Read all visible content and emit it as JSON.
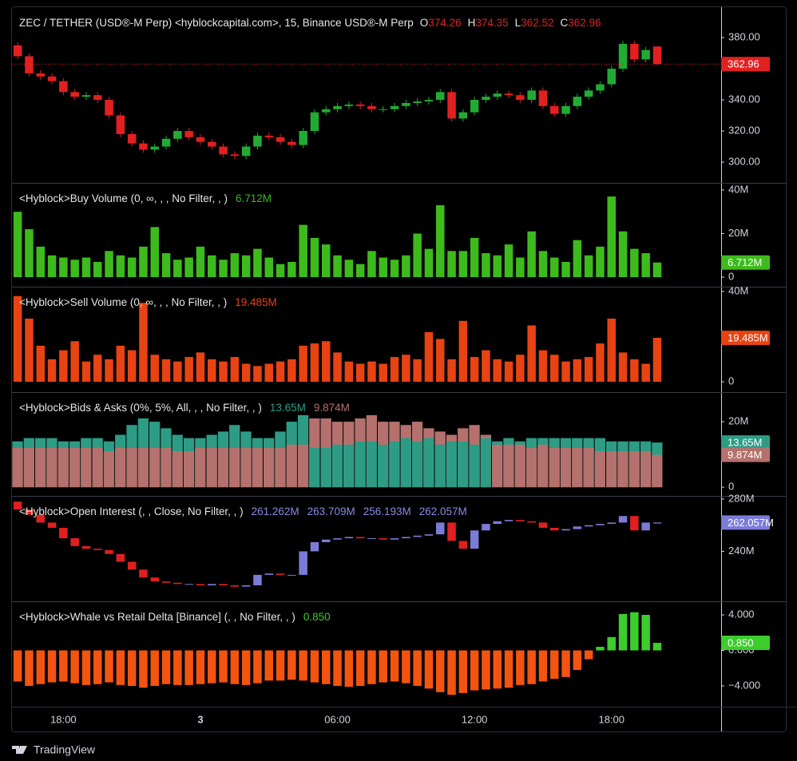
{
  "chart_data": [
    {
      "type": "candlestick",
      "title": "ZEC / TETHER (USD®-M Perp) <hyblockcapital.com>, 15, Binance USD®-M Perp",
      "legend_keys": [
        "O",
        "H",
        "L",
        "C"
      ],
      "open": [
        375,
        368,
        357,
        355,
        352,
        345,
        342,
        343,
        340,
        330,
        318,
        312,
        308,
        310,
        315,
        320,
        316,
        313,
        310,
        305,
        304,
        310,
        317,
        316,
        313,
        311,
        320,
        332,
        334,
        336,
        337,
        336,
        334,
        334,
        336,
        338,
        339,
        340,
        345,
        328,
        332,
        340,
        342,
        344,
        343,
        340,
        346,
        336,
        331,
        336,
        342,
        346,
        350,
        360,
        376,
        366,
        374.26
      ],
      "high": [
        377,
        370,
        359,
        357,
        354,
        347,
        345,
        345,
        342,
        332,
        320,
        314,
        312,
        317,
        322,
        322,
        318,
        315,
        312,
        307,
        312,
        319,
        319,
        318,
        315,
        322,
        334,
        336,
        338,
        339,
        339,
        338,
        336,
        338,
        340,
        341,
        342,
        347,
        347,
        334,
        342,
        344,
        346,
        346,
        345,
        348,
        348,
        338,
        338,
        344,
        348,
        352,
        362,
        378,
        378,
        374,
        374.35
      ],
      "low": [
        366,
        355,
        353,
        350,
        343,
        340,
        340,
        338,
        328,
        316,
        310,
        306,
        306,
        308,
        313,
        314,
        311,
        308,
        303,
        302,
        302,
        308,
        314,
        311,
        309,
        309,
        318,
        330,
        332,
        334,
        334,
        332,
        332,
        332,
        334,
        336,
        337,
        338,
        326,
        326,
        330,
        338,
        340,
        341,
        338,
        338,
        334,
        329,
        329,
        334,
        340,
        344,
        348,
        358,
        364,
        364,
        362.52
      ],
      "close": [
        368,
        357,
        355,
        352,
        345,
        342,
        343,
        340,
        330,
        318,
        312,
        308,
        310,
        315,
        320,
        316,
        313,
        310,
        305,
        304,
        310,
        317,
        316,
        313,
        311,
        320,
        332,
        334,
        336,
        337,
        336,
        334,
        334,
        336,
        338,
        339,
        340,
        345,
        328,
        332,
        340,
        342,
        344,
        343,
        340,
        346,
        336,
        331,
        336,
        342,
        346,
        350,
        360,
        376,
        366,
        372,
        362.96
      ],
      "up_color": "#22ab34",
      "down_color": "#e32020",
      "ylim": [
        287.2,
        399.0
      ],
      "yticks": [
        {
          "value": 300,
          "label": "300.00"
        },
        {
          "value": 320,
          "label": "320.00"
        },
        {
          "value": 340,
          "label": "340.00"
        },
        {
          "value": 380,
          "label": "380.00"
        }
      ]
    },
    {
      "type": "bar",
      "title": "<Hyblock>Buy Volume (0, ∞, , , No Filter, , )",
      "values": [
        30,
        22,
        14,
        10,
        9,
        8,
        9,
        7,
        12,
        10,
        9,
        14,
        23,
        11,
        8,
        9,
        14,
        10,
        8,
        11,
        10,
        13,
        9,
        6,
        7,
        24,
        18,
        15,
        10,
        8,
        6,
        12,
        9,
        8,
        10,
        20,
        13,
        33,
        12,
        12,
        18,
        11,
        10,
        15,
        9,
        21,
        12,
        9,
        7,
        17,
        10,
        14,
        37,
        21,
        13,
        11,
        6.712
      ],
      "last_value_label": "6.712M",
      "color": "#3dbb1c",
      "ylim": [
        -4.0,
        42.9
      ],
      "yticks": [
        0,
        {
          "value": 20,
          "label": "20M"
        },
        {
          "value": 40,
          "label": "40M"
        }
      ]
    },
    {
      "type": "bar",
      "title": "<Hyblock>Sell Volume (0, ∞, , , No Filter, , )",
      "values": [
        38,
        28,
        16,
        10,
        14,
        18,
        9,
        12,
        10,
        16,
        14,
        35,
        12,
        10,
        9,
        11,
        13,
        10,
        9,
        11,
        8,
        7,
        8,
        9,
        10,
        16,
        17,
        18,
        13,
        9,
        8,
        9,
        8,
        11,
        12,
        10,
        22,
        19,
        10,
        27,
        11,
        14,
        10,
        9,
        12,
        25,
        14,
        12,
        9,
        10,
        11,
        17,
        28,
        13,
        10,
        8,
        19.485
      ],
      "last_value_label": "19.485M",
      "color": "#e84312",
      "ylim": [
        -4.2,
        41.8
      ],
      "yticks": [
        0,
        {
          "value": 40,
          "label": "40M"
        }
      ]
    },
    {
      "type": "overlay",
      "title": "<Hyblock>Bids & Asks (0%, 5%, All, , , No Filter, , )",
      "series": [
        {
          "color": "#2e9c85",
          "last_value_label": "13.65M",
          "values": [
            14,
            15,
            15,
            15,
            14,
            14,
            15,
            15,
            14,
            16,
            19,
            21,
            20,
            18,
            16,
            15,
            15,
            16,
            17,
            19,
            17,
            15,
            15,
            17,
            20,
            22,
            12,
            12,
            13,
            13,
            14,
            14,
            13,
            14,
            15,
            14,
            15,
            13,
            14,
            14,
            13,
            15,
            14,
            15,
            14,
            15,
            15,
            15,
            15,
            15,
            15,
            15,
            14,
            14,
            14,
            14,
            13.65
          ]
        },
        {
          "color": "#b5716d",
          "last_value_label": "9.874M",
          "values": [
            12,
            12,
            12,
            12,
            12,
            12,
            12,
            12,
            11,
            12,
            12,
            12,
            12,
            12,
            11,
            11,
            12,
            12,
            12,
            12,
            12,
            12,
            12,
            12,
            13,
            13,
            21,
            21,
            20,
            20,
            21,
            22,
            20,
            20,
            19,
            20,
            18,
            17,
            16,
            18,
            19,
            16,
            13,
            13,
            13,
            12,
            13,
            12,
            12,
            12,
            12,
            11,
            11,
            11,
            11,
            11,
            9.874
          ]
        }
      ],
      "ylim": [
        -2.4,
        28.8
      ],
      "yticks": [
        0,
        {
          "value": 20,
          "label": "20M"
        }
      ]
    },
    {
      "type": "candlestick",
      "title": "<Hyblock>Open Interest (, , Close, No Filter, , )",
      "open": [
        278,
        272,
        268,
        262,
        258,
        250,
        244,
        242,
        241,
        238,
        232,
        226,
        220,
        217,
        216,
        215,
        215,
        214,
        215,
        214,
        213,
        214,
        222,
        223,
        222,
        222,
        240,
        247,
        249,
        250,
        251,
        250,
        250,
        249,
        250,
        251,
        252,
        253,
        262,
        248,
        242,
        256,
        261,
        263,
        264,
        263,
        262,
        258,
        256,
        257,
        259,
        260,
        261,
        262,
        267,
        256,
        261.262
      ],
      "close": [
        272,
        268,
        262,
        258,
        250,
        244,
        242,
        241,
        238,
        232,
        226,
        220,
        217,
        216,
        215,
        215,
        214,
        215,
        214,
        213,
        214,
        222,
        223,
        222,
        222,
        240,
        247,
        249,
        250,
        251,
        250,
        250,
        249,
        250,
        251,
        252,
        253,
        262,
        248,
        242,
        256,
        261,
        263,
        264,
        263,
        262,
        258,
        256,
        257,
        259,
        260,
        261,
        262,
        267,
        256,
        262,
        262.057
      ],
      "legend_values": [
        {
          "value": 261.262,
          "label": "261.262M"
        },
        {
          "value": 263.709,
          "label": "263.709M"
        },
        {
          "value": 256.193,
          "label": "256.193M"
        },
        {
          "value": 262.057,
          "label": "262.057M"
        }
      ],
      "up_color": "#7b7bd8",
      "down_color": "#e02020",
      "ylim": [
        202.4,
        281.8
      ],
      "yticks": [
        {
          "value": 240,
          "label": "240M"
        },
        {
          "value": 280,
          "label": "280M"
        }
      ]
    },
    {
      "type": "bar",
      "title": "<Hyblock>Whale vs Retail Delta [Binance] (, , No Filter, , )",
      "values": [
        -3.5,
        -4,
        -3.8,
        -3.6,
        -3.5,
        -3.7,
        -3.9,
        -3.8,
        -3.6,
        -3.9,
        -4,
        -4.2,
        -4,
        -3.8,
        -3.9,
        -3.9,
        -3.8,
        -3.7,
        -3.6,
        -3.8,
        -3.9,
        -3.7,
        -3.4,
        -3.4,
        -3.3,
        -3.4,
        -3.6,
        -3.8,
        -4,
        -4.1,
        -4,
        -3.8,
        -3.6,
        -3.5,
        -3.7,
        -4,
        -4.3,
        -4.7,
        -5,
        -4.8,
        -4.5,
        -4.4,
        -4.3,
        -4.2,
        -3.9,
        -3.8,
        -3.5,
        -3.2,
        -3,
        -2.2,
        -1,
        0.4,
        1.5,
        4.1,
        4.3,
        4,
        0.85
      ],
      "last_value_label": "0.850",
      "pos_color": "#3ccc2c",
      "neg_color": "#f35410",
      "ylim": [
        -6.34,
        5.44
      ],
      "yticks": [
        {
          "value": -4,
          "label": "−4.000"
        },
        {
          "value": 0,
          "label": "0.000"
        },
        {
          "value": 4,
          "label": "4.000"
        }
      ]
    }
  ],
  "time_axis": [
    null,
    null,
    null,
    null,
    "18:00",
    null,
    null,
    null,
    null,
    null,
    null,
    null,
    null,
    null,
    null,
    null,
    "3",
    null,
    null,
    null,
    null,
    null,
    null,
    null,
    null,
    null,
    null,
    null,
    "06:00",
    null,
    null,
    null,
    null,
    null,
    null,
    null,
    null,
    null,
    null,
    null,
    "12:00",
    null,
    null,
    null,
    null,
    null,
    null,
    null,
    null,
    null,
    null,
    null,
    "18:00",
    null,
    null,
    null,
    null
  ],
  "footer": "TradingView"
}
